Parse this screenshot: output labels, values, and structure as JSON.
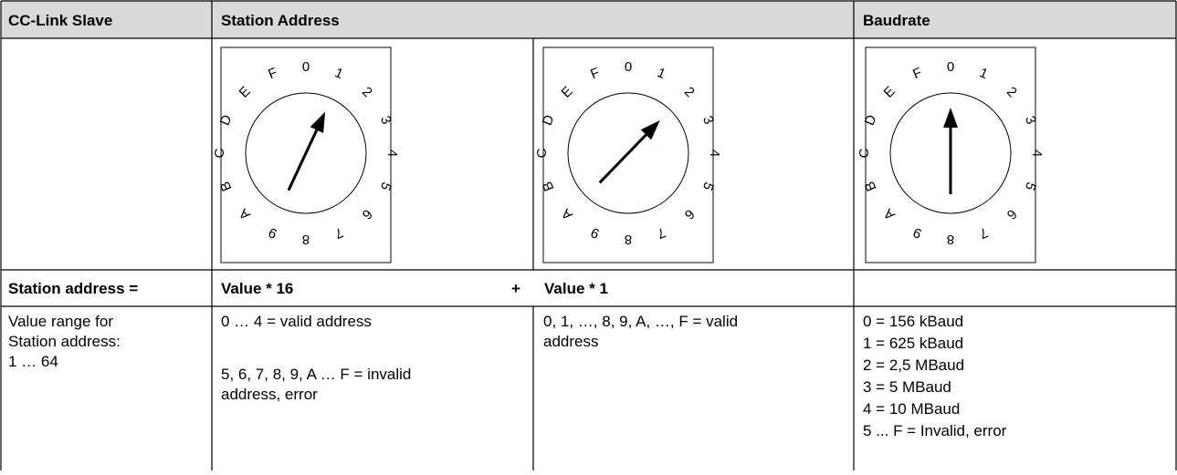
{
  "table": {
    "header": [
      "CC-Link Slave",
      "Station Address",
      "Baudrate"
    ],
    "dial_labels": [
      "0",
      "1",
      "2",
      "3",
      "4",
      "5",
      "6",
      "7",
      "8",
      "9",
      "A",
      "B",
      "C",
      "D",
      "E",
      "F"
    ],
    "formula": {
      "label": "Station address =",
      "term1": "Value * 16",
      "operator": "+",
      "term2": "Value * 1"
    },
    "details": {
      "range": [
        "Value range for",
        "Station address:",
        "1 … 64"
      ],
      "high": {
        "valid": "0 … 4 = valid address",
        "invalid": [
          "5, 6, 7, 8, 9, A … F = invalid",
          "address, error"
        ]
      },
      "low": [
        "0, 1,  …, 8, 9, A, …, F  = valid",
        "address"
      ],
      "baudrate": [
        "0 = 156 kBaud",
        "1 = 625 kBaud",
        "2 = 2,5 MBaud",
        "3 = 5 MBaud",
        "4 = 10 MBaud",
        "5 ... F = Invalid, error"
      ]
    }
  }
}
